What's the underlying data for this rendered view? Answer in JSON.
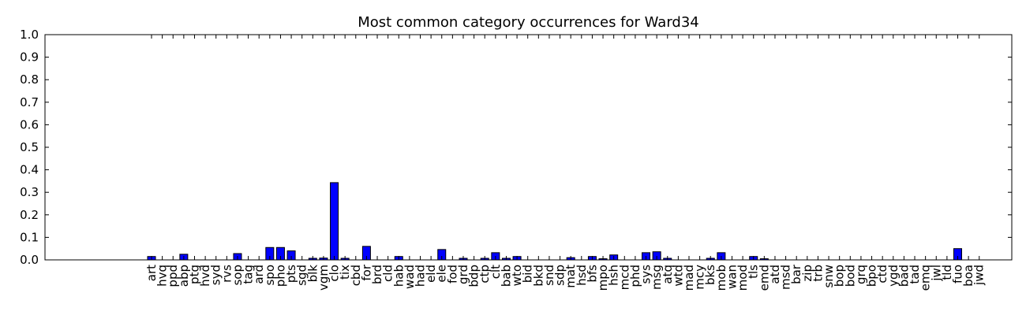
{
  "chart_data": {
    "type": "bar",
    "title": "Most common category occurrences for Ward34",
    "xlabel": "",
    "ylabel": "",
    "ylim": [
      0,
      1.0
    ],
    "yticks": [
      "0.0",
      "0.1",
      "0.2",
      "0.3",
      "0.4",
      "0.5",
      "0.6",
      "0.7",
      "0.8",
      "0.9",
      "1.0"
    ],
    "bar_color": "#0000ff",
    "categories": [
      "art",
      "hvq",
      "ppd",
      "abp",
      "ptg",
      "hvd",
      "syd",
      "rvs",
      "sop",
      "tag",
      "ard",
      "spo",
      "pho",
      "pts",
      "sgd",
      "blk",
      "vgm",
      "clo",
      "tix",
      "cbd",
      "for",
      "brd",
      "cld",
      "hab",
      "wad",
      "had",
      "eld",
      "ele",
      "fod",
      "grd",
      "bdp",
      "ctp",
      "clt",
      "bab",
      "wto",
      "bid",
      "bkd",
      "snd",
      "sdp",
      "mat",
      "hsd",
      "bfs",
      "mpo",
      "hsh",
      "mcd",
      "phd",
      "sys",
      "msg",
      "atq",
      "wtd",
      "mad",
      "mcy",
      "bks",
      "mob",
      "wan",
      "mod",
      "tls",
      "emd",
      "atd",
      "msd",
      "bar",
      "zip",
      "trb",
      "snw",
      "bop",
      "bod",
      "grq",
      "bpo",
      "ctd",
      "ygd",
      "bad",
      "tad",
      "emq",
      "jwl",
      "tld",
      "fuo",
      "boa",
      "jwd"
    ],
    "values": [
      0.015,
      0,
      0,
      0.025,
      0,
      0,
      0,
      0,
      0.028,
      0,
      0,
      0.055,
      0.055,
      0.04,
      0,
      0.007,
      0.008,
      0.343,
      0.007,
      0,
      0.06,
      0,
      0,
      0.015,
      0,
      0,
      0,
      0.046,
      0,
      0.007,
      0,
      0.007,
      0.032,
      0.007,
      0.015,
      0,
      0,
      0,
      0,
      0.01,
      0,
      0.015,
      0.005,
      0.022,
      0,
      0,
      0.032,
      0.036,
      0.007,
      0,
      0,
      0,
      0.007,
      0.032,
      0,
      0,
      0.015,
      0.005,
      0,
      0,
      0,
      0,
      0,
      0,
      0,
      0,
      0,
      0,
      0,
      0,
      0,
      0,
      0,
      0,
      0,
      0.05,
      0,
      0
    ]
  }
}
